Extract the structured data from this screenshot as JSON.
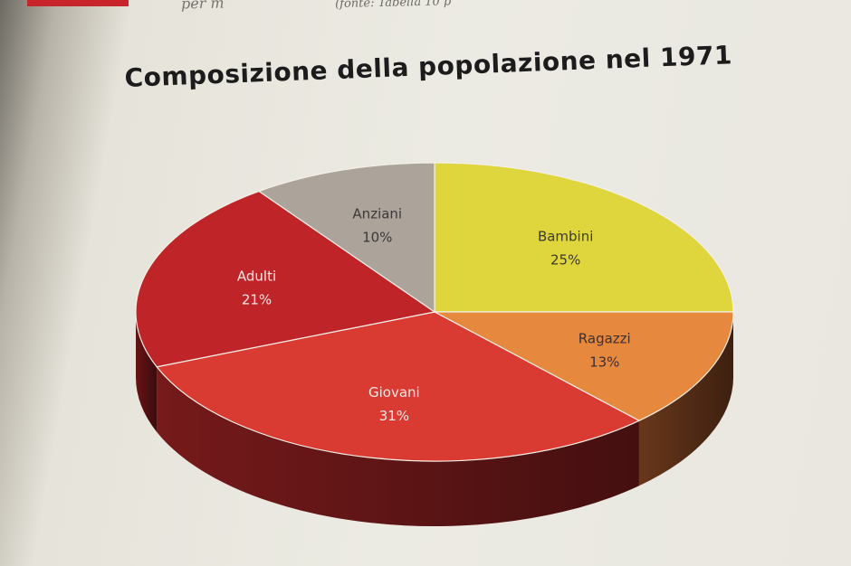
{
  "header": {
    "caption_left": "per m",
    "caption_right": "(fonte: Tabella 10 p"
  },
  "chart_data": {
    "type": "pie",
    "title": "Composizione della popolazione nel 1971",
    "legend": "none",
    "slices": [
      {
        "label": "Bambini",
        "value": 25,
        "value_label": "25%",
        "color": "#dfd53c",
        "side_color": "#6a6418",
        "text_color": "#3a3a30"
      },
      {
        "label": "Ragazzi",
        "value": 13,
        "value_label": "13%",
        "color": "#e7883f",
        "side_color": "#6e3a1c",
        "text_color": "#3a3030"
      },
      {
        "label": "Giovani",
        "value": 31,
        "value_label": "31%",
        "color": "#d93a32",
        "side_color": "#7c1b1c",
        "text_color": "#f4e8e4"
      },
      {
        "label": "Adulti",
        "value": 21,
        "value_label": "21%",
        "color": "#bf2429",
        "side_color": "#6d1416",
        "text_color": "#f4e8e4"
      },
      {
        "label": "Anziani",
        "value": 10,
        "value_label": "10%",
        "color": "#aca49b",
        "side_color": "#5e5852",
        "text_color": "#3a3838"
      }
    ]
  }
}
